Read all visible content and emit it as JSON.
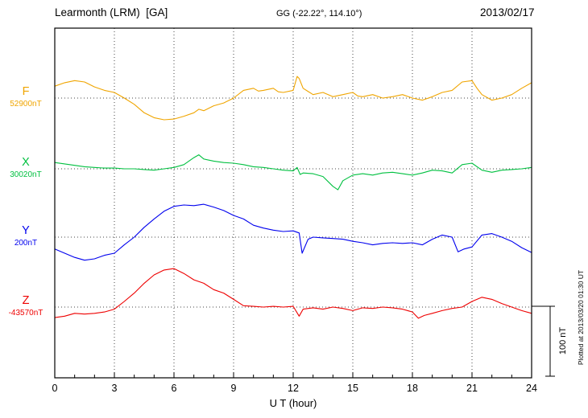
{
  "header": {
    "station": "Learmonth (LRM)  [GA]",
    "coordinates": "GG (-22.22°, 114.10°)",
    "date": "2013/02/17"
  },
  "axis": {
    "xlabel": "U T (hour)"
  },
  "scale_bar": {
    "label": "100 nT"
  },
  "plotted_note": "Plotted at 2013/03/20 01:30 UT",
  "chart_data": {
    "type": "line",
    "title": "Learmonth (LRM) [GA] magnetogram 2013/02/17",
    "xlabel": "U T (hour)",
    "x_range": [
      0,
      24
    ],
    "x_ticks": [
      0,
      3,
      6,
      9,
      12,
      15,
      18,
      21,
      24
    ],
    "grid": "dotted vertical lines every 3 h; dotted horizontal baseline per channel",
    "legend_position": "left margin, one colored label per channel",
    "scale_bar_nT": 100,
    "units": "values are nT offsets from each channel baseline",
    "series": [
      {
        "name": "F",
        "baseline_label": "52900nT",
        "color": "#f0a500",
        "x": [
          0,
          0.5,
          1,
          1.5,
          2,
          2.5,
          3,
          3.5,
          4,
          4.5,
          5,
          5.5,
          6,
          6.5,
          7,
          7.25,
          7.5,
          8,
          8.5,
          9,
          9.5,
          10,
          10.25,
          10.5,
          11,
          11.25,
          11.5,
          12,
          12.2,
          12.3,
          12.5,
          13,
          13.5,
          14,
          14.5,
          15,
          15.25,
          15.5,
          16,
          16.5,
          17,
          17.5,
          18,
          18.5,
          19,
          19.5,
          20,
          20.5,
          21,
          21.25,
          21.5,
          22,
          22.5,
          23,
          23.5,
          24
        ],
        "values": [
          17,
          22,
          25,
          23,
          16,
          11,
          8,
          0,
          -9,
          -21,
          -28,
          -31,
          -30,
          -26,
          -21,
          -16,
          -18,
          -11,
          -7,
          0,
          11,
          14,
          10,
          11,
          14,
          9,
          8,
          11,
          31,
          28,
          14,
          5,
          8,
          2,
          5,
          8,
          3,
          2,
          5,
          0,
          2,
          5,
          0,
          -3,
          2,
          8,
          11,
          23,
          25,
          14,
          5,
          -3,
          0,
          5,
          14,
          22
        ]
      },
      {
        "name": "X",
        "baseline_label": "30020nT",
        "color": "#00c040",
        "x": [
          0,
          0.5,
          1,
          1.5,
          2,
          2.5,
          3,
          3.5,
          4,
          4.5,
          5,
          5.5,
          6,
          6.5,
          7,
          7.25,
          7.5,
          8,
          8.5,
          9,
          9.5,
          10,
          10.5,
          11,
          11.5,
          12,
          12.2,
          12.35,
          12.5,
          13,
          13.5,
          14,
          14.25,
          14.5,
          15,
          15.5,
          16,
          16.5,
          17,
          17.5,
          18,
          18.5,
          19,
          19.5,
          20,
          20.5,
          21,
          21.5,
          22,
          22.5,
          23,
          23.5,
          24
        ],
        "values": [
          9,
          7,
          5,
          3,
          2,
          1,
          1,
          0,
          0,
          -1,
          -2,
          0,
          2,
          6,
          16,
          20,
          14,
          11,
          9,
          8,
          6,
          3,
          2,
          0,
          -2,
          -3,
          2,
          -8,
          -6,
          -7,
          -11,
          -25,
          -30,
          -17,
          -9,
          -7,
          -9,
          -6,
          -5,
          -7,
          -9,
          -6,
          -2,
          -3,
          -6,
          6,
          8,
          -2,
          -5,
          -2,
          -1,
          0,
          2
        ]
      },
      {
        "name": "Y",
        "baseline_label": "200nT",
        "color": "#0000ee",
        "x": [
          0,
          0.5,
          1,
          1.5,
          2,
          2.5,
          3,
          3.5,
          4,
          4.5,
          5,
          5.5,
          6,
          6.5,
          7,
          7.5,
          8,
          8.5,
          9,
          9.5,
          10,
          10.5,
          11,
          11.5,
          12,
          12.3,
          12.45,
          12.75,
          13,
          13.5,
          14,
          14.5,
          15,
          15.5,
          16,
          16.5,
          17,
          17.5,
          18,
          18.5,
          19,
          19.5,
          20,
          20.3,
          20.6,
          21,
          21.5,
          22,
          22.5,
          23,
          23.5,
          24
        ],
        "values": [
          -17,
          -23,
          -29,
          -33,
          -31,
          -26,
          -23,
          -11,
          0,
          14,
          26,
          37,
          44,
          46,
          45,
          47,
          43,
          38,
          31,
          26,
          17,
          13,
          10,
          8,
          9,
          6,
          -23,
          -3,
          0,
          -1,
          -2,
          -3,
          -6,
          -8,
          -11,
          -9,
          -8,
          -9,
          -8,
          -11,
          -3,
          3,
          0,
          -21,
          -17,
          -14,
          3,
          5,
          0,
          -6,
          -15,
          -22
        ]
      },
      {
        "name": "Z",
        "baseline_label": "-43570nT",
        "color": "#ee0000",
        "x": [
          0,
          0.5,
          1,
          1.5,
          2,
          2.5,
          3,
          3.5,
          4,
          4.5,
          5,
          5.5,
          6,
          6.5,
          7,
          7.5,
          8,
          8.5,
          9,
          9.5,
          10,
          10.5,
          11,
          11.5,
          12,
          12.3,
          12.5,
          13,
          13.5,
          14,
          14.5,
          15,
          15.5,
          16,
          16.5,
          17,
          17.5,
          18,
          18.3,
          18.6,
          19,
          19.5,
          20,
          20.5,
          21,
          21.5,
          22,
          22.5,
          23,
          23.5,
          24
        ],
        "values": [
          -15,
          -13,
          -9,
          -10,
          -9,
          -7,
          -3,
          8,
          20,
          34,
          46,
          53,
          55,
          48,
          39,
          34,
          25,
          20,
          11,
          2,
          1,
          0,
          1,
          0,
          1,
          -13,
          -3,
          -1,
          -3,
          0,
          -2,
          -5,
          -1,
          -2,
          0,
          -1,
          -3,
          -7,
          -16,
          -12,
          -9,
          -5,
          -2,
          0,
          8,
          14,
          11,
          5,
          0,
          -5,
          -9
        ]
      }
    ]
  }
}
